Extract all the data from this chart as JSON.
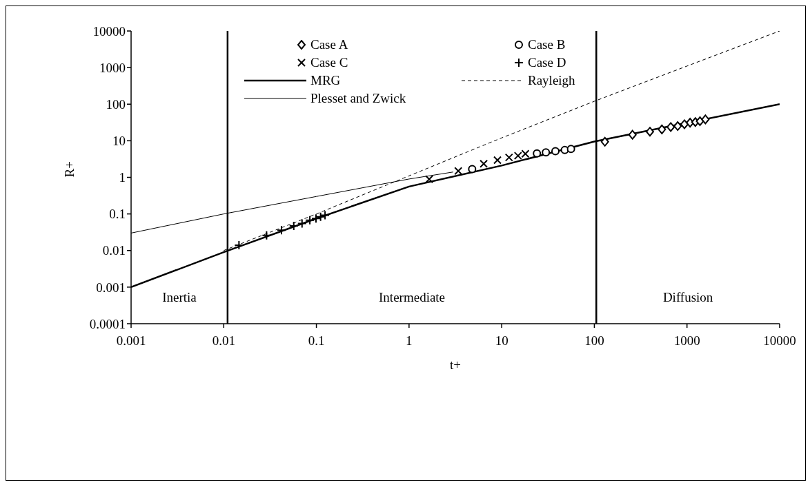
{
  "chart_data": {
    "type": "scatter",
    "xlabel": "t+",
    "ylabel": "R+",
    "log": "xy",
    "xlim": [
      0.001,
      10000
    ],
    "ylim": [
      0.0001,
      10000
    ],
    "xticks": [
      0.001,
      0.01,
      0.1,
      1,
      10,
      100,
      1000,
      10000
    ],
    "yticks": [
      0.0001,
      0.001,
      0.01,
      0.1,
      1,
      10,
      100,
      1000,
      10000
    ],
    "grid": false,
    "legend": "top",
    "series": [
      {
        "name": "Case A",
        "marker": "diamond",
        "color": "#000000",
        "x": [
          130,
          258,
          398,
          536,
          668,
          794,
          938,
          1080,
          1230,
          1380,
          1580
        ],
        "values": [
          9.4,
          14.6,
          17.7,
          20.5,
          23.7,
          25.2,
          28.2,
          31.2,
          32.4,
          34.2,
          38.3
        ]
      },
      {
        "name": "Case B",
        "marker": "circle",
        "color": "#000000",
        "x": [
          4.8,
          24,
          30,
          38,
          48,
          56
        ],
        "values": [
          1.68,
          4.5,
          4.8,
          5.2,
          5.6,
          6.0
        ]
      },
      {
        "name": "Case C",
        "marker": "cross",
        "color": "#000000",
        "x": [
          1.65,
          3.4,
          6.4,
          9,
          12,
          15,
          18
        ],
        "values": [
          0.89,
          1.49,
          2.36,
          2.95,
          3.5,
          3.9,
          4.4
        ]
      },
      {
        "name": "Case D",
        "marker": "plus",
        "color": "#000000",
        "x": [
          0.0146,
          0.029,
          0.042,
          0.057,
          0.07,
          0.085,
          0.099,
          0.111,
          0.124
        ],
        "values": [
          0.014,
          0.026,
          0.036,
          0.047,
          0.055,
          0.067,
          0.075,
          0.084,
          0.092
        ]
      },
      {
        "name": "MRG",
        "type": "line",
        "line_style": "solid",
        "color": "#000000",
        "x": [
          0.001,
          0.01,
          0.1,
          1,
          10,
          100,
          1000,
          10000
        ],
        "values": [
          0.001,
          0.009,
          0.075,
          0.56,
          2.1,
          9.5,
          31,
          100
        ]
      },
      {
        "name": "Rayleigh",
        "type": "line",
        "line_style": "dashed",
        "color": "#000000",
        "x": [
          0.01,
          0.1,
          1,
          10,
          100,
          1000,
          10000
        ],
        "values": [
          0.01,
          0.1,
          1.1,
          12,
          120,
          1100,
          10000
        ]
      },
      {
        "name": "Plesset and Zwick",
        "type": "line",
        "line_style": "solid",
        "color": "#000000",
        "x": [
          0.001,
          0.01,
          0.1,
          1,
          3
        ],
        "values": [
          0.03,
          0.1,
          0.3,
          0.9,
          1.4
        ]
      }
    ],
    "ref_lines": [
      {
        "axis": "x",
        "value": 0.011,
        "color": "#000000"
      },
      {
        "axis": "x",
        "value": 105,
        "color": "#000000"
      }
    ],
    "annotations": [
      "Inertia",
      "Intermediate",
      "Diffusion"
    ]
  }
}
